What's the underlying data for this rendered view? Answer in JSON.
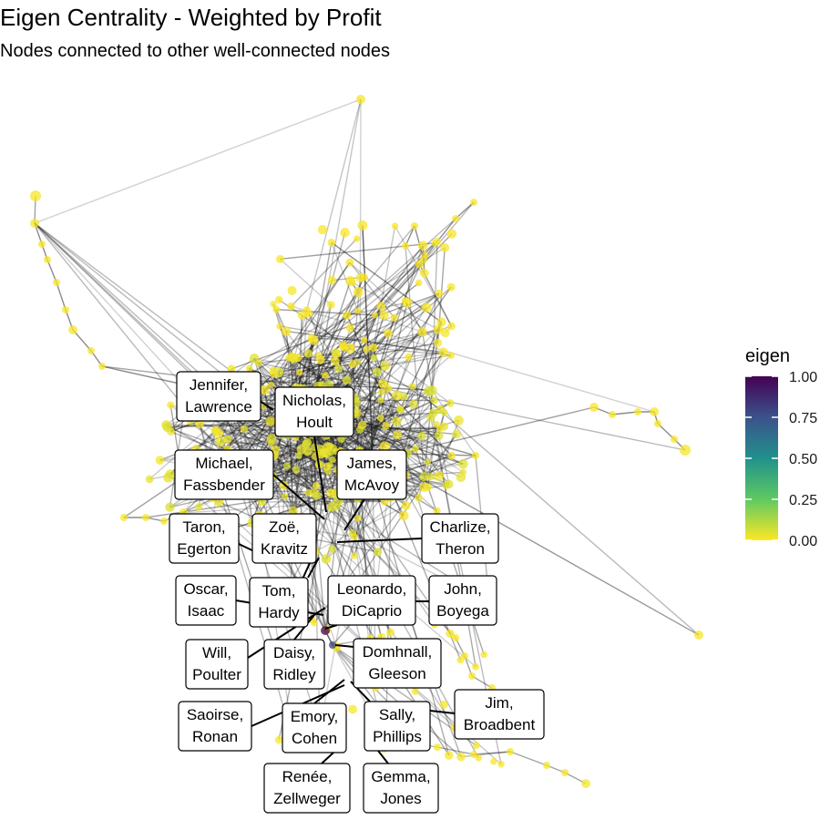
{
  "chart_data": {
    "type": "network",
    "title": "Eigen Centrality - Weighted by Profit",
    "subtitle": "Nodes connected to other well-connected nodes",
    "legend": {
      "title": "eigen",
      "range": [
        0,
        1
      ],
      "ticks": [
        "0.00",
        "0.25",
        "0.50",
        "0.75",
        "1.00"
      ],
      "colors": [
        "#fde725",
        "#5ec962",
        "#21918c",
        "#3b528b",
        "#440154"
      ]
    },
    "labels": [
      {
        "text": [
          "Jennifer,",
          "Lawrence"
        ],
        "eigen": 0.02
      },
      {
        "text": [
          "Nicholas,",
          "Hoult"
        ],
        "eigen": 0.03
      },
      {
        "text": [
          "Michael,",
          "Fassbender"
        ],
        "eigen": 0.03
      },
      {
        "text": [
          "James,",
          "McAvoy"
        ],
        "eigen": 0.03
      },
      {
        "text": [
          "Taron,",
          "Egerton"
        ],
        "eigen": 0.02
      },
      {
        "text": [
          "Zoë,",
          "Kravitz"
        ],
        "eigen": 0.02
      },
      {
        "text": [
          "Charlize,",
          "Theron"
        ],
        "eigen": 0.02
      },
      {
        "text": [
          "Oscar,",
          "Isaac"
        ],
        "eigen": 0.2
      },
      {
        "text": [
          "Tom,",
          "Hardy"
        ],
        "eigen": 0.05
      },
      {
        "text": [
          "Leonardo,",
          "DiCaprio"
        ],
        "eigen": 0.03
      },
      {
        "text": [
          "John,",
          "Boyega"
        ],
        "eigen": 0.2
      },
      {
        "text": [
          "Will,",
          "Poulter"
        ],
        "eigen": 0.05
      },
      {
        "text": [
          "Daisy,",
          "Ridley"
        ],
        "eigen": 1.0
      },
      {
        "text": [
          "Domhnall,",
          "Gleeson"
        ],
        "eigen": 0.7
      },
      {
        "text": [
          "Saoirse,",
          "Ronan"
        ],
        "eigen": 0.03
      },
      {
        "text": [
          "Emory,",
          "Cohen"
        ],
        "eigen": 0.02
      },
      {
        "text": [
          "Sally,",
          "Phillips"
        ],
        "eigen": 0.02
      },
      {
        "text": [
          "Jim,",
          "Broadbent"
        ],
        "eigen": 0.02
      },
      {
        "text": [
          "Renée,",
          "Zellweger"
        ],
        "eigen": 0.02
      },
      {
        "text": [
          "Gemma,",
          "Jones"
        ],
        "eigen": 0.02
      }
    ]
  }
}
